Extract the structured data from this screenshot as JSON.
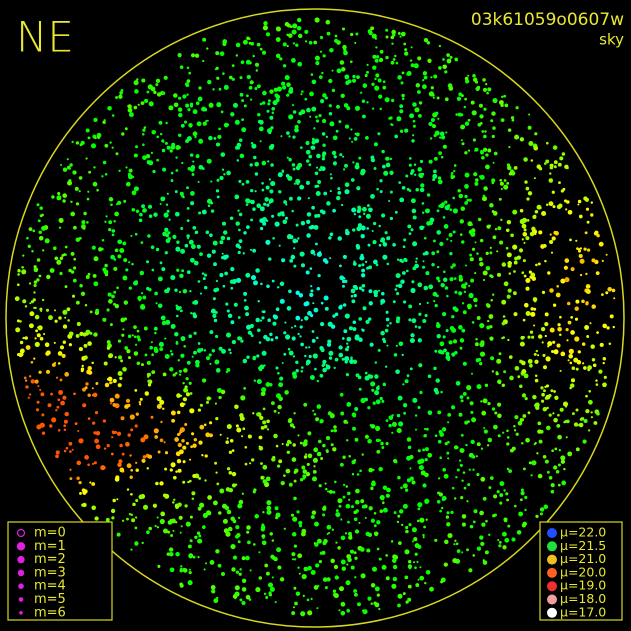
{
  "header": {
    "direction": "NE",
    "frame_id": "03k61059o0607w",
    "mode": "sky"
  },
  "magnitude_legend": [
    "m=0",
    "m=1",
    "m=2",
    "m=3",
    "m=4",
    "m=5",
    "m=6"
  ],
  "mu_legend": [
    "μ=22.0",
    "μ=21.5",
    "μ=21.0",
    "μ=20.0",
    "μ=19.0",
    "μ=18.0",
    "μ=17.0"
  ]
}
